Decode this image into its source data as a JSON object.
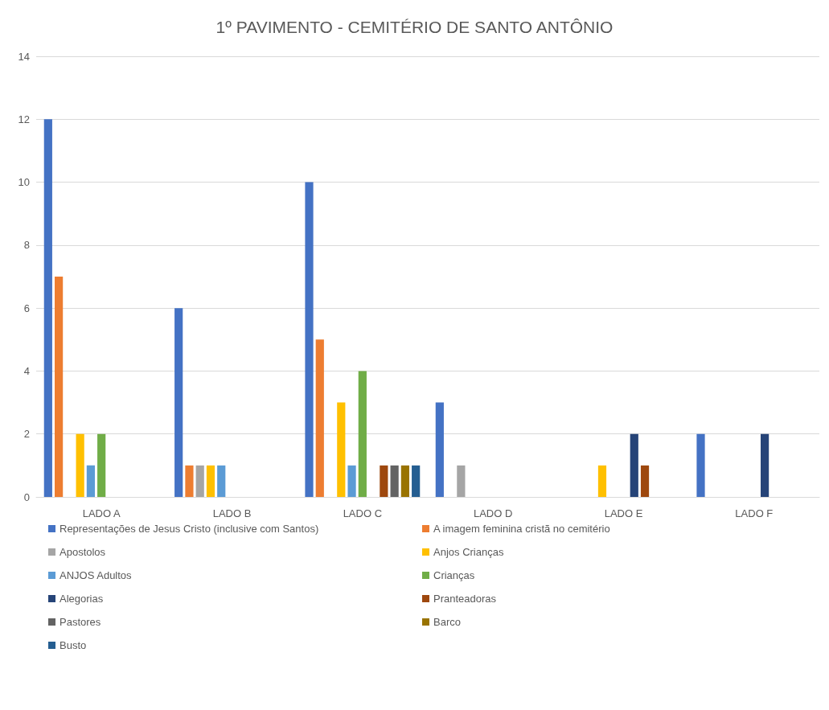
{
  "chart_data": {
    "type": "bar",
    "title": "1º PAVIMENTO - CEMITÉRIO DE SANTO ANTÔNIO",
    "categories": [
      "LADO A",
      "LADO B",
      "LADO C",
      "LADO D",
      "LADO E",
      "LADO F"
    ],
    "series": [
      {
        "name": "Representações de Jesus Cristo (inclusive com Santos)",
        "color": "#4472c4",
        "values": [
          12,
          6,
          10,
          3,
          0,
          2
        ]
      },
      {
        "name": "A imagem feminina cristã no cemitério",
        "color": "#ed7d31",
        "values": [
          7,
          1,
          5,
          0,
          0,
          0
        ]
      },
      {
        "name": "Apostolos",
        "color": "#a5a5a5",
        "values": [
          0,
          1,
          0,
          1,
          0,
          0
        ]
      },
      {
        "name": "Anjos Crianças",
        "color": "#ffc000",
        "values": [
          2,
          1,
          3,
          0,
          1,
          0
        ]
      },
      {
        "name": "ANJOS Adultos",
        "color": "#5b9bd5",
        "values": [
          1,
          1,
          1,
          0,
          0,
          0
        ]
      },
      {
        "name": "Crianças",
        "color": "#70ad47",
        "values": [
          2,
          0,
          4,
          0,
          0,
          0
        ]
      },
      {
        "name": "Alegorias",
        "color": "#264478",
        "values": [
          0,
          0,
          0,
          0,
          2,
          2
        ]
      },
      {
        "name": "Pranteadoras",
        "color": "#9e480e",
        "values": [
          0,
          0,
          1,
          0,
          1,
          0
        ]
      },
      {
        "name": "Pastores",
        "color": "#636363",
        "values": [
          0,
          0,
          1,
          0,
          0,
          0
        ]
      },
      {
        "name": "Barco",
        "color": "#997300",
        "values": [
          0,
          0,
          1,
          0,
          0,
          0
        ]
      },
      {
        "name": "Busto",
        "color": "#255e91",
        "values": [
          0,
          0,
          1,
          0,
          0,
          0
        ]
      }
    ],
    "ylim": [
      0,
      14
    ],
    "yticks": [
      0,
      2,
      4,
      6,
      8,
      10,
      12,
      14
    ],
    "grid": "y",
    "legend": "bottom"
  }
}
